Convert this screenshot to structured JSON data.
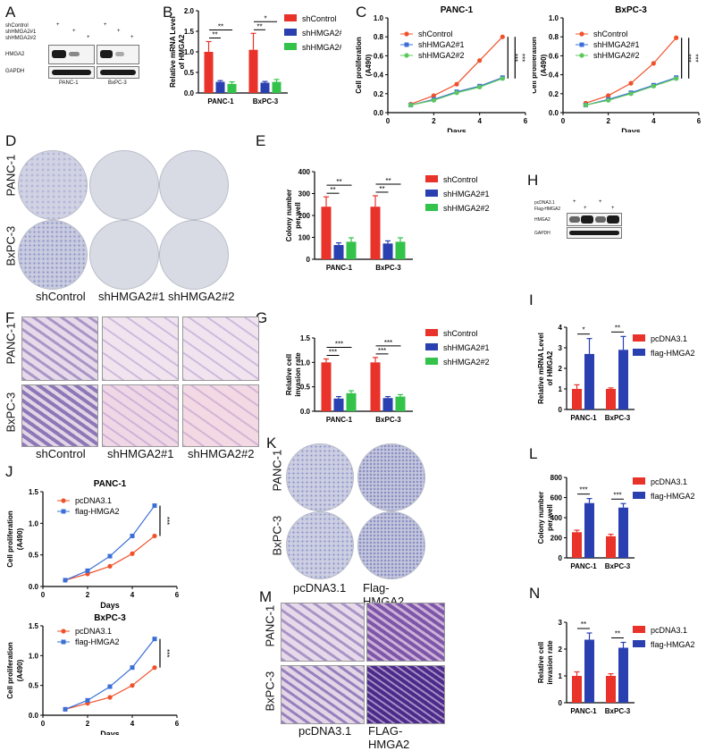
{
  "panels": {
    "A": {
      "letter": "A",
      "row_labels": [
        "shControl",
        "shHMGA2#1",
        "shHMGA2#2"
      ],
      "signs": [
        [
          "+",
          "",
          ""
        ],
        [
          "",
          "+",
          ""
        ],
        [
          "",
          "",
          "+"
        ]
      ],
      "bands": [
        "HMGA2",
        "GAPDH"
      ],
      "cells": [
        "PANC-1",
        "BxPC-3"
      ]
    },
    "B": {
      "letter": "B"
    },
    "C": {
      "letter": "C"
    },
    "D": {
      "letter": "D",
      "rows": [
        "PANC-1",
        "BxPC-3"
      ],
      "cols": [
        "shControl",
        "shHMGA2#1",
        "shHMGA2#2"
      ]
    },
    "E": {
      "letter": "E"
    },
    "F": {
      "letter": "F",
      "rows": [
        "PANC-1",
        "BxPC-3"
      ],
      "cols": [
        "shControl",
        "shHMGA2#1",
        "shHMGA2#2"
      ]
    },
    "G": {
      "letter": "G"
    },
    "H": {
      "letter": "H",
      "row_labels": [
        "pcDNA3.1",
        "Flag-HMGA2"
      ],
      "signs": [
        [
          "+",
          "",
          "+",
          ""
        ],
        [
          "",
          "+",
          "",
          "+"
        ]
      ],
      "bands": [
        "HMGA2",
        "GAPDH"
      ]
    },
    "I": {
      "letter": "I"
    },
    "J": {
      "letter": "J"
    },
    "K": {
      "letter": "K",
      "rows": [
        "PANC-1",
        "BxPC-3"
      ],
      "cols": [
        "pcDNA3.1",
        "Flag-HMGA2"
      ]
    },
    "L": {
      "letter": "L"
    },
    "M": {
      "letter": "M",
      "rows": [
        "PANC-1",
        "BxPC-3"
      ],
      "cols": [
        "pcDNA3.1",
        "FLAG-HMGA2"
      ]
    },
    "N": {
      "letter": "N"
    }
  },
  "colors": {
    "red": "#e8322a",
    "blue": "#2a3fb0",
    "green": "#33c24a",
    "orange": "#f0512a",
    "lightblue": "#3b6fd8",
    "lightgreen": "#5cc85c"
  },
  "chart_data": [
    {
      "id": "B",
      "type": "bar",
      "ylabel": "Relative mRNA Level of HMGA2",
      "categories": [
        "PANC-1",
        "BxPC-3"
      ],
      "ylim": [
        0,
        2.0
      ],
      "yticks": [
        0.0,
        0.5,
        1.0,
        1.5,
        2.0
      ],
      "series": [
        {
          "name": "shControl",
          "values": [
            1.0,
            1.05
          ],
          "err": [
            0.25,
            0.4
          ]
        },
        {
          "name": "shHMGA2#1",
          "values": [
            0.27,
            0.25
          ],
          "err": [
            0.03,
            0.03
          ]
        },
        {
          "name": "shHMGA2#2",
          "values": [
            0.22,
            0.27
          ],
          "err": [
            0.05,
            0.06
          ]
        }
      ],
      "sig": [
        [
          "**",
          "*"
        ],
        [
          "**",
          "**"
        ]
      ]
    },
    {
      "id": "C1",
      "type": "line",
      "title": "PANC-1",
      "xlabel": "Days",
      "ylabel": "Cell proliferation (A490)",
      "x": [
        1,
        2,
        3,
        4,
        5
      ],
      "xlim": [
        0,
        6
      ],
      "ylim": [
        0,
        1.0
      ],
      "xticks": [
        0,
        2,
        4,
        6
      ],
      "yticks": [
        0.0,
        0.2,
        0.4,
        0.6,
        0.8,
        1.0
      ],
      "series": [
        {
          "name": "shControl",
          "values": [
            0.09,
            0.18,
            0.3,
            0.55,
            0.8
          ]
        },
        {
          "name": "shHMGA2#1",
          "values": [
            0.08,
            0.14,
            0.22,
            0.28,
            0.37
          ]
        },
        {
          "name": "shHMGA2#2",
          "values": [
            0.08,
            0.13,
            0.21,
            0.27,
            0.36
          ]
        }
      ],
      "sig": [
        "***",
        "***"
      ]
    },
    {
      "id": "C2",
      "type": "line",
      "title": "BxPC-3",
      "xlabel": "Days",
      "ylabel": "Cell proliferation (A490)",
      "x": [
        1,
        2,
        3,
        4,
        5
      ],
      "xlim": [
        0,
        6
      ],
      "ylim": [
        0,
        1.0
      ],
      "xticks": [
        0,
        2,
        4,
        6
      ],
      "yticks": [
        0.0,
        0.2,
        0.4,
        0.6,
        0.8,
        1.0
      ],
      "series": [
        {
          "name": "shControl",
          "values": [
            0.1,
            0.18,
            0.31,
            0.52,
            0.79
          ]
        },
        {
          "name": "shHMGA2#1",
          "values": [
            0.08,
            0.14,
            0.21,
            0.29,
            0.37
          ]
        },
        {
          "name": "shHMGA2#2",
          "values": [
            0.08,
            0.13,
            0.2,
            0.28,
            0.36
          ]
        }
      ],
      "sig": [
        "***",
        "***"
      ]
    },
    {
      "id": "E",
      "type": "bar",
      "ylabel": "Colony number per well",
      "categories": [
        "PANC-1",
        "BxPC-3"
      ],
      "ylim": [
        0,
        400
      ],
      "yticks": [
        0,
        100,
        200,
        300,
        400
      ],
      "series": [
        {
          "name": "shControl",
          "values": [
            240,
            240
          ],
          "err": [
            45,
            50
          ]
        },
        {
          "name": "shHMGA2#1",
          "values": [
            65,
            72
          ],
          "err": [
            10,
            12
          ]
        },
        {
          "name": "shHMGA2#2",
          "values": [
            80,
            80
          ],
          "err": [
            18,
            18
          ]
        }
      ],
      "sig": [
        [
          "**",
          "**"
        ],
        [
          "**",
          "**"
        ]
      ]
    },
    {
      "id": "G",
      "type": "bar",
      "ylabel": "Relative cell invasion rate",
      "categories": [
        "PANC-1",
        "BxPC-3"
      ],
      "ylim": [
        0,
        1.5
      ],
      "yticks": [
        0.0,
        0.5,
        1.0,
        1.5
      ],
      "series": [
        {
          "name": "shControl",
          "values": [
            1.0,
            1.0
          ],
          "err": [
            0.07,
            0.1
          ]
        },
        {
          "name": "shHMGA2#1",
          "values": [
            0.26,
            0.27
          ],
          "err": [
            0.04,
            0.03
          ]
        },
        {
          "name": "shHMGA2#2",
          "values": [
            0.37,
            0.3
          ],
          "err": [
            0.05,
            0.04
          ]
        }
      ],
      "sig": [
        [
          "***",
          "***"
        ],
        [
          "***",
          "***"
        ]
      ]
    },
    {
      "id": "I",
      "type": "bar",
      "ylabel": "Relative mRNA Level of HMGA2",
      "categories": [
        "PANC-1",
        "BxPC-3"
      ],
      "ylim": [
        0,
        4
      ],
      "yticks": [
        0,
        1,
        2,
        3,
        4
      ],
      "series": [
        {
          "name": "pcDNA3.1",
          "values": [
            1.0,
            1.0
          ],
          "err": [
            0.2,
            0.05
          ]
        },
        {
          "name": "flag-HMGA2",
          "values": [
            2.7,
            2.9
          ],
          "err": [
            0.75,
            0.65
          ]
        }
      ],
      "sig": [
        "*",
        "**"
      ]
    },
    {
      "id": "J1",
      "type": "line",
      "title": "PANC-1",
      "xlabel": "Days",
      "ylabel": "Cell proliferation (A490)",
      "x": [
        1,
        2,
        3,
        4,
        5
      ],
      "xlim": [
        0,
        6
      ],
      "ylim": [
        0,
        1.5
      ],
      "xticks": [
        0,
        2,
        4,
        6
      ],
      "yticks": [
        0.0,
        0.5,
        1.0,
        1.5
      ],
      "series": [
        {
          "name": "pcDNA3.1",
          "values": [
            0.1,
            0.2,
            0.32,
            0.52,
            0.8
          ]
        },
        {
          "name": "flag-HMGA2",
          "values": [
            0.1,
            0.25,
            0.48,
            0.8,
            1.28
          ]
        }
      ],
      "sig": [
        "***"
      ]
    },
    {
      "id": "J2",
      "type": "line",
      "title": "BxPC-3",
      "xlabel": "Days",
      "ylabel": "Cell proliferation (A490)",
      "x": [
        1,
        2,
        3,
        4,
        5
      ],
      "xlim": [
        0,
        6
      ],
      "ylim": [
        0,
        1.5
      ],
      "xticks": [
        0,
        2,
        4,
        6
      ],
      "yticks": [
        0.0,
        0.5,
        1.0,
        1.5
      ],
      "series": [
        {
          "name": "pcDNA3.1",
          "values": [
            0.1,
            0.2,
            0.3,
            0.5,
            0.8
          ]
        },
        {
          "name": "flag-HMGA2",
          "values": [
            0.1,
            0.25,
            0.48,
            0.8,
            1.28
          ]
        }
      ],
      "sig": [
        "***"
      ]
    },
    {
      "id": "L",
      "type": "bar",
      "ylabel": "Colony number per well",
      "categories": [
        "PANC-1",
        "BxPC-3"
      ],
      "ylim": [
        0,
        800
      ],
      "yticks": [
        0,
        200,
        400,
        600,
        800
      ],
      "series": [
        {
          "name": "pcDNA3.1",
          "values": [
            255,
            215
          ],
          "err": [
            20,
            20
          ]
        },
        {
          "name": "flag-HMGA2",
          "values": [
            545,
            500
          ],
          "err": [
            45,
            40
          ]
        }
      ],
      "sig": [
        "***",
        "***"
      ]
    },
    {
      "id": "N",
      "type": "bar",
      "ylabel": "Relative cell invasion rate",
      "categories": [
        "PANC-1",
        "BxPC-3"
      ],
      "ylim": [
        0,
        3
      ],
      "yticks": [
        0,
        1,
        2,
        3
      ],
      "series": [
        {
          "name": "pcDNA3.1",
          "values": [
            1.0,
            1.0
          ],
          "err": [
            0.15,
            0.08
          ]
        },
        {
          "name": "flag-HMGA2",
          "values": [
            2.35,
            2.05
          ],
          "err": [
            0.25,
            0.2
          ]
        }
      ],
      "sig": [
        "**",
        "**"
      ]
    }
  ]
}
